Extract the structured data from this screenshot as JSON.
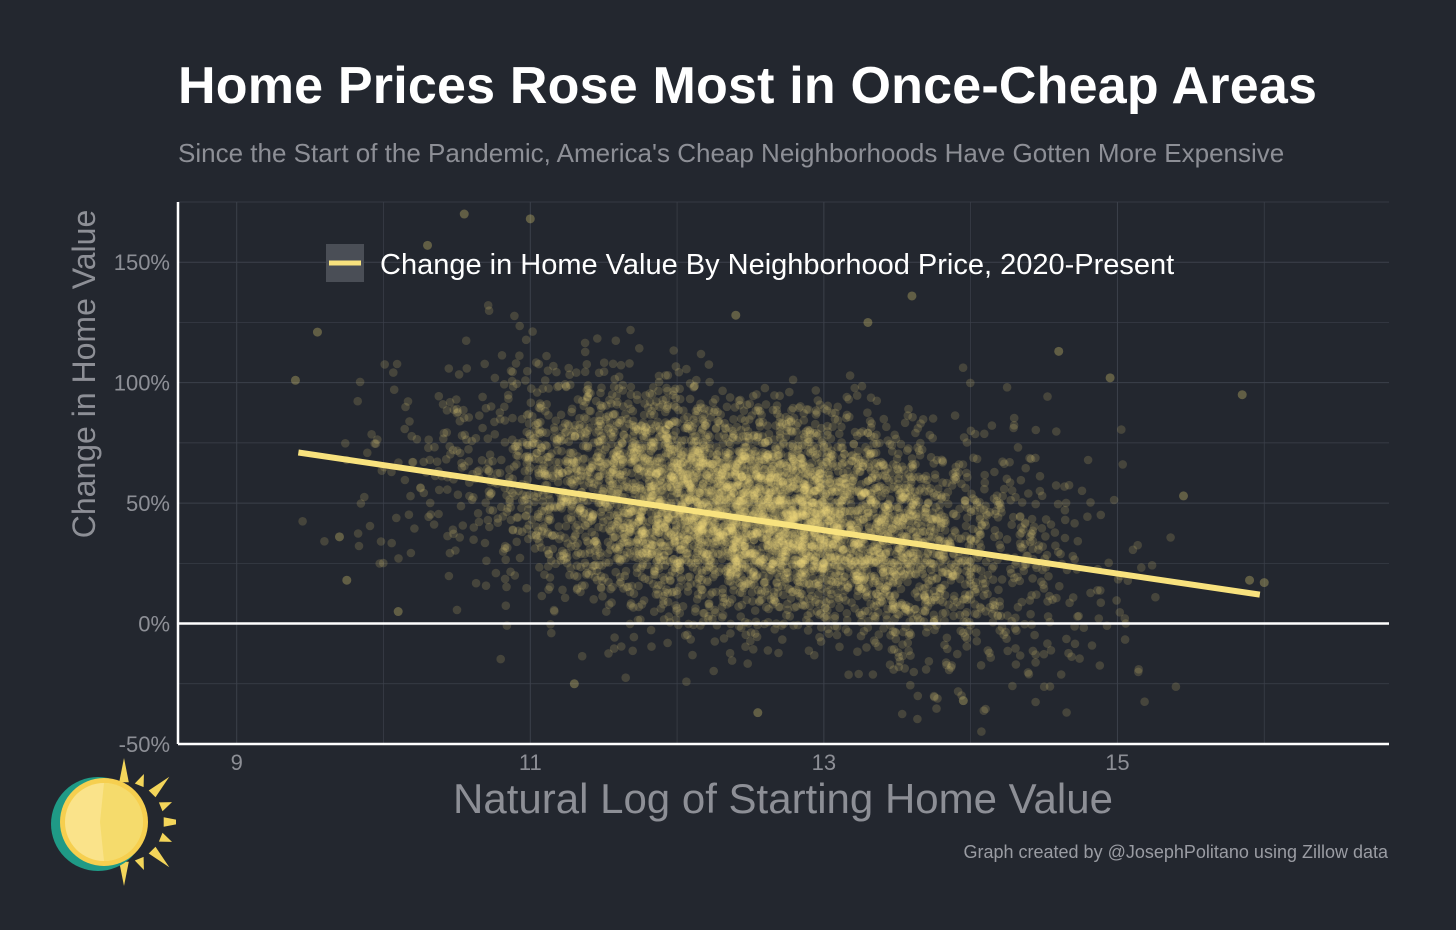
{
  "title": "Home Prices Rose Most in Once-Cheap Areas",
  "subtitle": "Since the Start of the Pandemic, America's Cheap Neighborhoods Have Gotten More Expensive",
  "credit": "Graph created by @JosephPolitano using Zillow data",
  "colors": {
    "background": "#23272f",
    "grid": "#3c414b",
    "point": "#f2de7c",
    "trend": "#f8e27e",
    "axis": "#ffffff",
    "tick_text": "#8d8f96",
    "legend_key_bg": "#4a4e56"
  },
  "chart_data": {
    "type": "scatter",
    "title": "Home Prices Rose Most in Once-Cheap Areas",
    "subtitle": "Since the Start of the Pandemic, America's Cheap Neighborhoods Have Gotten More Expensive",
    "xlabel": "Natural Log of Starting Home Value",
    "ylabel": "Change in Home Value",
    "xlim": [
      8.6,
      16.85
    ],
    "ylim": [
      -50,
      175
    ],
    "x_ticks": [
      9,
      11,
      13,
      15
    ],
    "x_tick_labels": [
      "9",
      "11",
      "13",
      "15"
    ],
    "y_ticks": [
      -50,
      0,
      50,
      100,
      150
    ],
    "y_tick_labels": [
      "-50%",
      "0%",
      "50%",
      "100%",
      "150%"
    ],
    "grid": true,
    "zero_line": true,
    "legend": {
      "position": "top-center",
      "entries": [
        "Change in Home Value By Neighborhood Price, 2020-Present"
      ]
    },
    "series": [
      {
        "name": "Change in Home Value By Neighborhood Price, 2020-Present",
        "kind": "points",
        "cloud": {
          "center": [
            12.55,
            46
          ],
          "spread_x": 0.95,
          "spread_y": 21,
          "slope": -9.5,
          "x_range": [
            9.4,
            16.1
          ],
          "count": 5200
        },
        "highlighted_points": [
          {
            "x": 9.4,
            "y": 101
          },
          {
            "x": 10.55,
            "y": 170
          },
          {
            "x": 11.0,
            "y": 168
          },
          {
            "x": 9.55,
            "y": 121
          },
          {
            "x": 10.3,
            "y": 157
          },
          {
            "x": 13.3,
            "y": 125
          },
          {
            "x": 14.95,
            "y": 102
          },
          {
            "x": 15.85,
            "y": 95
          },
          {
            "x": 14.6,
            "y": 113
          },
          {
            "x": 12.4,
            "y": 128
          },
          {
            "x": 12.55,
            "y": -37
          },
          {
            "x": 13.95,
            "y": -32
          },
          {
            "x": 16.0,
            "y": 17
          },
          {
            "x": 15.9,
            "y": 18
          },
          {
            "x": 9.75,
            "y": 18
          },
          {
            "x": 13.6,
            "y": 136
          },
          {
            "x": 11.3,
            "y": -25
          },
          {
            "x": 15.45,
            "y": 53
          },
          {
            "x": 9.7,
            "y": 36
          },
          {
            "x": 10.1,
            "y": 5
          }
        ]
      },
      {
        "name": "Change in Home Value By Neighborhood Price, 2020-Present",
        "kind": "trend_line",
        "x": [
          9.42,
          15.97
        ],
        "y": [
          71,
          12
        ]
      }
    ]
  }
}
